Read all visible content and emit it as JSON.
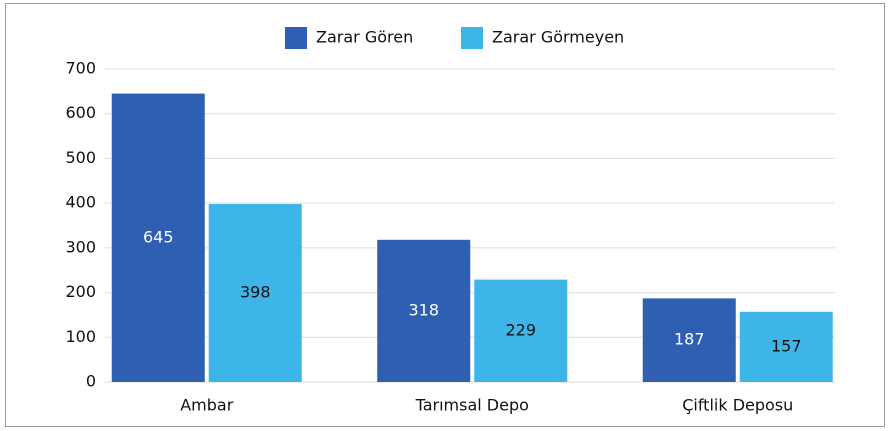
{
  "chart_data": {
    "type": "bar",
    "categories": [
      "Ambar",
      "Tarımsal Depo",
      "Çiftlik Deposu"
    ],
    "series": [
      {
        "name": "Zarar Gören",
        "color": "#2f5fb3",
        "values": [
          645,
          318,
          187
        ]
      },
      {
        "name": "Zarar Görmeyen",
        "color": "#3db5e8",
        "values": [
          398,
          229,
          157
        ]
      }
    ],
    "ylim": [
      0,
      700
    ],
    "yticks": [
      0,
      100,
      200,
      300,
      400,
      500,
      600,
      700
    ],
    "grid": true,
    "legend": "top"
  }
}
